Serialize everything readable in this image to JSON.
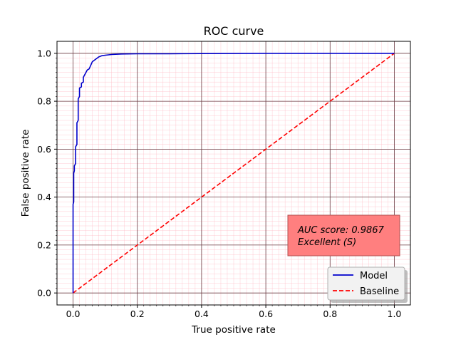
{
  "chart_data": {
    "type": "line",
    "title": "ROC curve",
    "xlabel": "True positive rate",
    "ylabel": "False positive rate",
    "xlim": [
      -0.05,
      1.05
    ],
    "ylim": [
      -0.05,
      1.05
    ],
    "xticks": [
      "0.0",
      "0.2",
      "0.4",
      "0.6",
      "0.8",
      "1.0"
    ],
    "yticks": [
      "0.0",
      "0.2",
      "0.4",
      "0.6",
      "0.8",
      "1.0"
    ],
    "grid": true,
    "legend_position": "bottom-right",
    "series": [
      {
        "name": "Model",
        "color": "#0000cc",
        "style": "solid",
        "x": [
          0.0,
          0.0,
          0.002,
          0.002,
          0.004,
          0.004,
          0.008,
          0.008,
          0.012,
          0.012,
          0.016,
          0.016,
          0.02,
          0.02,
          0.026,
          0.026,
          0.032,
          0.032,
          0.04,
          0.044,
          0.05,
          0.055,
          0.06,
          0.07,
          0.08,
          0.09,
          0.1,
          0.12,
          0.15,
          0.2,
          0.3,
          0.4,
          0.6,
          0.8,
          1.0
        ],
        "y": [
          0.0,
          0.37,
          0.38,
          0.5,
          0.51,
          0.53,
          0.54,
          0.61,
          0.62,
          0.71,
          0.72,
          0.81,
          0.82,
          0.855,
          0.86,
          0.875,
          0.88,
          0.9,
          0.92,
          0.93,
          0.935,
          0.95,
          0.965,
          0.975,
          0.985,
          0.99,
          0.992,
          0.995,
          0.997,
          0.998,
          0.998,
          0.999,
          1.0,
          1.0,
          1.0
        ]
      },
      {
        "name": "Baseline",
        "color": "#ff0000",
        "style": "dashed",
        "x": [
          0.0,
          1.0
        ],
        "y": [
          0.0,
          1.0
        ]
      }
    ],
    "annotation": {
      "line1": "AUC score: 0.9867",
      "line2": "Excellent (S)",
      "color": "#ff7f7f"
    }
  }
}
